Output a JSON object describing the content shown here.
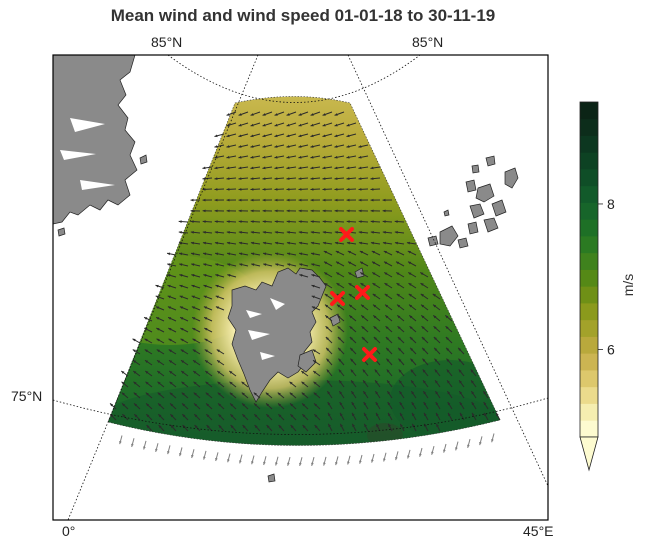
{
  "title": "Mean wind and wind speed 01-01-18 to 30-11-19",
  "graticule_labels": {
    "top_left": "85°N",
    "top_right": "85°N",
    "left": "75°N",
    "bottom_left": "0°",
    "bottom_right": "45°E"
  },
  "colorbar": {
    "label": "m/s",
    "ticks": [
      "8",
      "6"
    ],
    "tick_values": [
      8,
      6
    ],
    "range": [
      4.8,
      9.4
    ],
    "extend": "min",
    "colors": [
      "#fdfbd0",
      "#f5eeb0",
      "#ebdb8c",
      "#ddc86c",
      "#ccb552",
      "#b9a93c",
      "#a3a22a",
      "#8b9a1c",
      "#6f9016",
      "#558916",
      "#3f821d",
      "#2b7a22",
      "#1e7026",
      "#17652a",
      "#125a2a",
      "#0f4e27",
      "#0d4223",
      "#0c3720",
      "#0c2d1b",
      "#0b2416"
    ]
  },
  "colors": {
    "land": "#8a8a8a",
    "marker": "#ff1a1a",
    "arrow": "#2b2b2b",
    "arrow_outside": "#7f7f7f"
  },
  "markers": [
    "x-marker",
    "x-marker",
    "x-marker",
    "x-marker"
  ]
}
